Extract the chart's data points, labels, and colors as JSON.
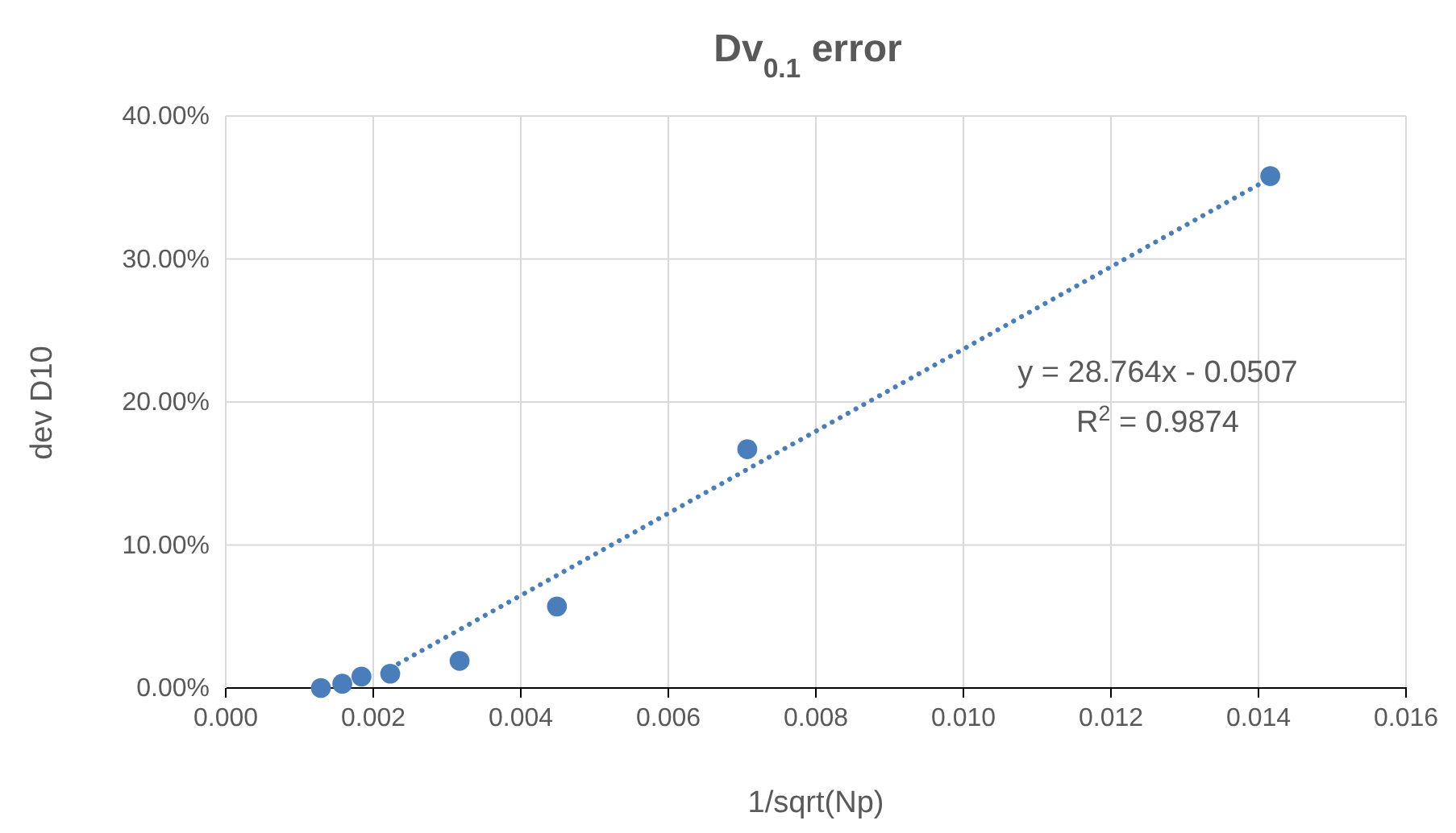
{
  "chart_data": {
    "type": "scatter",
    "title": "Dv$_{0.1}$ error",
    "xlabel": "1/sqrt(Np)",
    "ylabel": "dev D10",
    "x": [
      0.00129,
      0.00158,
      0.00184,
      0.00223,
      0.00317,
      0.00449,
      0.00707,
      0.01416
    ],
    "series": [
      {
        "color": "#4a7ebb",
        "values": [
          0.0,
          0.003,
          0.008,
          0.01,
          0.019,
          0.057,
          0.167,
          0.358
        ]
      },
      {
        "type": "line",
        "color": "#4a7ebb",
        "line_style": "dotted",
        "marker": "none",
        "x": [
          0.00234,
          0.01414
        ],
        "values": [
          0.017,
          0.356
        ]
      }
    ],
    "marker": "circle",
    "xlim": [
      0,
      0.016
    ],
    "xticks": [
      {
        "value": 0,
        "label": "0.000"
      },
      {
        "value": 0.002,
        "label": "0.002"
      },
      {
        "value": 0.004,
        "label": "0.004"
      },
      {
        "value": 0.006,
        "label": "0.006"
      },
      {
        "value": 0.008,
        "label": "0.008"
      },
      {
        "value": 0.01,
        "label": "0.010"
      },
      {
        "value": 0.012,
        "label": "0.012"
      },
      {
        "value": 0.014,
        "label": "0.014"
      },
      {
        "value": 0.016,
        "label": "0.016"
      }
    ],
    "ylim": [
      0,
      0.4
    ],
    "yticks": [
      {
        "value": 0,
        "label": "0.00%"
      },
      {
        "value": 0.1,
        "label": "10.00%"
      },
      {
        "value": 0.2,
        "label": "20.00%"
      },
      {
        "value": 0.3,
        "label": "30.00%"
      },
      {
        "value": 0.4,
        "label": "40.00%"
      }
    ],
    "grid": true,
    "annotations": [
      "y = 28.764x - 0.0507",
      "R$^{2}$ = 0.9874"
    ]
  }
}
